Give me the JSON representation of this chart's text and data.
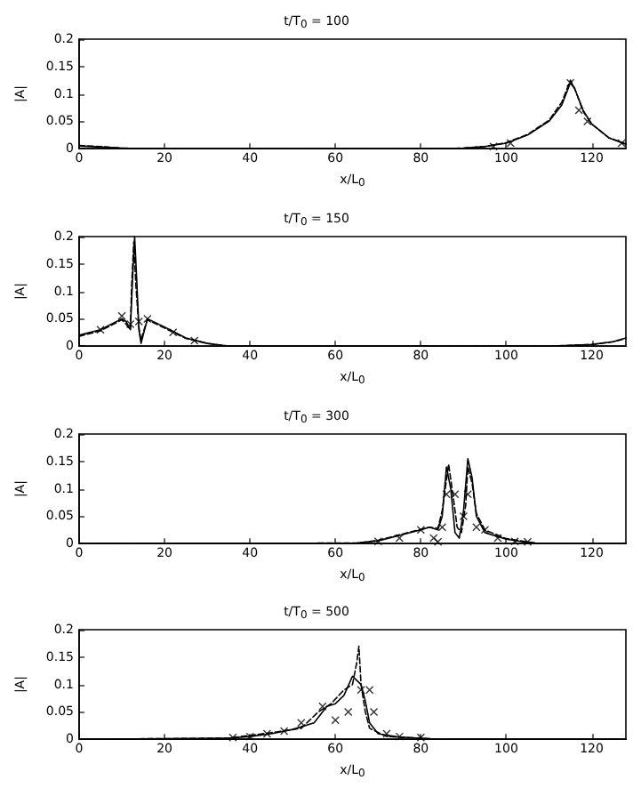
{
  "chart_data": [
    {
      "type": "line",
      "title": "t/T$_{0}$ = 100",
      "xlabel": "x/L$_{0}$",
      "ylabel": "|A|",
      "xlim": [
        0,
        128
      ],
      "xticks": [
        0,
        20,
        40,
        60,
        80,
        100,
        120
      ],
      "ylim": [
        0,
        0.2
      ],
      "yticks": [
        0,
        0.05,
        0.1,
        0.15,
        0.2
      ],
      "grid": false,
      "series": [
        {
          "color": "#000000",
          "line_style": "solid",
          "marker": "none",
          "x": [
            0,
            5,
            10,
            20,
            40,
            60,
            80,
            90,
            95,
            100,
            105,
            110,
            113,
            115,
            116,
            118,
            120,
            124,
            128
          ],
          "values": [
            0.005,
            0.003,
            0.001,
            0,
            0,
            0,
            0,
            0.001,
            0.004,
            0.01,
            0.025,
            0.05,
            0.08,
            0.12,
            0.11,
            0.07,
            0.045,
            0.02,
            0.008
          ]
        },
        {
          "color": "#000000",
          "line_style": "dashed",
          "marker": "none",
          "x": [
            0,
            5,
            10,
            20,
            40,
            60,
            80,
            90,
            95,
            100,
            105,
            110,
            113,
            115,
            116,
            118,
            120,
            124,
            128
          ],
          "values": [
            0.006,
            0.004,
            0.001,
            0,
            0,
            0,
            0,
            0.001,
            0.004,
            0.011,
            0.026,
            0.052,
            0.085,
            0.125,
            0.11,
            0.068,
            0.045,
            0.02,
            0.009
          ]
        },
        {
          "type": "scatter",
          "color": "#000000",
          "marker": "cross",
          "x": [
            97,
            101,
            115,
            117,
            119,
            127
          ],
          "values": [
            0.004,
            0.01,
            0.12,
            0.07,
            0.05,
            0.01
          ]
        }
      ]
    },
    {
      "type": "line",
      "title": "t/T$_{0}$ = 150",
      "xlabel": "x/L$_{0}$",
      "ylabel": "|A|",
      "xlim": [
        0,
        128
      ],
      "xticks": [
        0,
        20,
        40,
        60,
        80,
        100,
        120
      ],
      "ylim": [
        0,
        0.2
      ],
      "yticks": [
        0,
        0.05,
        0.1,
        0.15,
        0.2
      ],
      "grid": false,
      "series": [
        {
          "color": "#000000",
          "line_style": "solid",
          "marker": "none",
          "x": [
            0,
            5,
            10,
            11,
            12,
            12.5,
            13,
            13.5,
            14,
            14.5,
            15,
            16,
            20,
            25,
            30,
            35,
            60,
            110,
            120,
            125,
            128
          ],
          "values": [
            0.02,
            0.03,
            0.05,
            0.045,
            0.03,
            0.12,
            0.2,
            0.12,
            0.03,
            0.005,
            0.02,
            0.05,
            0.035,
            0.015,
            0.005,
            0,
            0,
            0,
            0.003,
            0.008,
            0.015
          ]
        },
        {
          "color": "#000000",
          "line_style": "dashed",
          "marker": "none",
          "x": [
            0,
            5,
            10,
            11,
            12,
            12.3,
            12.8,
            13.3,
            14,
            14.5,
            15,
            16,
            20,
            25,
            30,
            35,
            60,
            110,
            120,
            125,
            128
          ],
          "values": [
            0.018,
            0.028,
            0.048,
            0.04,
            0.03,
            0.11,
            0.19,
            0.11,
            0.035,
            0.01,
            0.025,
            0.048,
            0.033,
            0.014,
            0.005,
            0,
            0,
            0,
            0.003,
            0.008,
            0.014
          ]
        },
        {
          "type": "scatter",
          "color": "#000000",
          "marker": "cross",
          "x": [
            5,
            10,
            12,
            14,
            16,
            22,
            27
          ],
          "values": [
            0.03,
            0.055,
            0.04,
            0.045,
            0.05,
            0.025,
            0.01
          ]
        }
      ]
    },
    {
      "type": "line",
      "title": "t/T$_{0}$ = 300",
      "xlabel": "x/L$_{0}$",
      "ylabel": "|A|",
      "xlim": [
        0,
        128
      ],
      "xticks": [
        0,
        20,
        40,
        60,
        80,
        100,
        120
      ],
      "ylim": [
        0,
        0.2
      ],
      "yticks": [
        0,
        0.05,
        0.1,
        0.15,
        0.2
      ],
      "grid": false,
      "series": [
        {
          "color": "#000000",
          "line_style": "solid",
          "marker": "none",
          "x": [
            0,
            65,
            70,
            75,
            80,
            82,
            84,
            85,
            86,
            87,
            88,
            89,
            90,
            91,
            92,
            93,
            95,
            100,
            105,
            108,
            128
          ],
          "values": [
            0,
            0.001,
            0.005,
            0.015,
            0.025,
            0.03,
            0.025,
            0.05,
            0.14,
            0.1,
            0.02,
            0.01,
            0.06,
            0.155,
            0.12,
            0.05,
            0.02,
            0.008,
            0.002,
            0,
            0
          ]
        },
        {
          "color": "#000000",
          "line_style": "dashed",
          "marker": "none",
          "x": [
            0,
            65,
            70,
            75,
            80,
            82,
            84,
            85,
            86.5,
            87.5,
            88.5,
            89.5,
            90.5,
            91,
            92,
            93,
            95,
            100,
            105,
            108,
            128
          ],
          "values": [
            0,
            0.001,
            0.006,
            0.016,
            0.026,
            0.03,
            0.028,
            0.06,
            0.145,
            0.09,
            0.03,
            0.02,
            0.07,
            0.14,
            0.11,
            0.055,
            0.025,
            0.009,
            0.003,
            0,
            0
          ]
        },
        {
          "type": "scatter",
          "color": "#000000",
          "marker": "cross",
          "x": [
            70,
            75,
            80,
            83,
            84,
            85,
            86,
            88,
            90,
            91,
            93,
            95,
            98,
            102,
            105
          ],
          "values": [
            0.004,
            0.01,
            0.025,
            0.01,
            0.003,
            0.03,
            0.09,
            0.09,
            0.05,
            0.09,
            0.03,
            0.025,
            0.01,
            0.004,
            0.003
          ]
        }
      ]
    },
    {
      "type": "line",
      "title": "t/T$_{0}$ = 500",
      "xlabel": "x/L$_{0}$",
      "ylabel": "|A|",
      "xlim": [
        0,
        128
      ],
      "xticks": [
        0,
        20,
        40,
        60,
        80,
        100,
        120
      ],
      "ylim": [
        0,
        0.2
      ],
      "yticks": [
        0,
        0.05,
        0.1,
        0.15,
        0.2
      ],
      "grid": false,
      "series": [
        {
          "color": "#000000",
          "line_style": "solid",
          "marker": "none",
          "x": [
            0,
            35,
            40,
            45,
            50,
            55,
            58,
            60,
            62,
            64,
            66,
            67,
            68,
            70,
            75,
            80,
            84,
            128
          ],
          "values": [
            0,
            0.002,
            0.005,
            0.01,
            0.018,
            0.03,
            0.06,
            0.065,
            0.08,
            0.115,
            0.1,
            0.07,
            0.03,
            0.01,
            0.004,
            0.002,
            0,
            0
          ]
        },
        {
          "color": "#000000",
          "line_style": "dashed",
          "marker": "none",
          "x": [
            0,
            35,
            45,
            52,
            56,
            59,
            62,
            64,
            65,
            65.5,
            66,
            67,
            68,
            72,
            80,
            84,
            128
          ],
          "values": [
            0,
            0.002,
            0.012,
            0.02,
            0.05,
            0.065,
            0.09,
            0.1,
            0.14,
            0.17,
            0.1,
            0.05,
            0.02,
            0.005,
            0.002,
            0,
            0
          ]
        },
        {
          "type": "scatter",
          "color": "#000000",
          "marker": "cross",
          "x": [
            36,
            40,
            44,
            48,
            52,
            57,
            60,
            63,
            66,
            68,
            69,
            72,
            75,
            80
          ],
          "values": [
            0.003,
            0.005,
            0.01,
            0.015,
            0.03,
            0.06,
            0.035,
            0.05,
            0.09,
            0.09,
            0.05,
            0.01,
            0.005,
            0.003
          ]
        }
      ]
    }
  ]
}
